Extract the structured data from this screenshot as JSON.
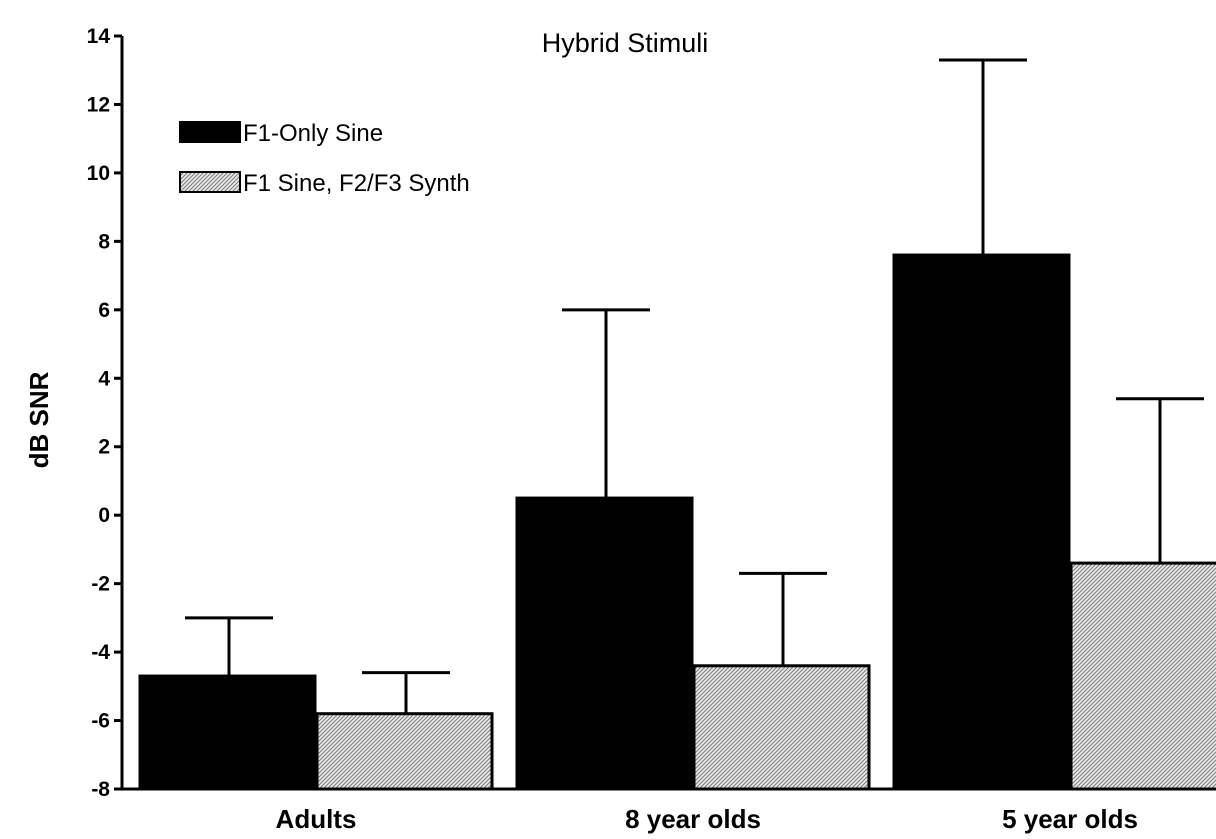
{
  "chart_data": {
    "type": "bar",
    "title": "Hybrid Stimuli",
    "xlabel": "",
    "ylabel": "dB SNR",
    "ylim": [
      -8,
      14
    ],
    "yticks": [
      "-8",
      "-6",
      "-4",
      "-2",
      "0",
      "2",
      "4",
      "6",
      "8",
      "10",
      "12",
      "14"
    ],
    "categories": [
      "Adults",
      "8 year olds",
      "5 year olds"
    ],
    "series": [
      {
        "name": "F1-Only Sine",
        "values": [
          -4.7,
          0.5,
          7.6
        ],
        "errors": [
          1.7,
          5.5,
          5.7
        ],
        "fill": "solid",
        "color": "#000000"
      },
      {
        "name": "F1 Sine, F2/F3 Synth",
        "values": [
          -5.8,
          -4.4,
          -1.4
        ],
        "errors": [
          1.2,
          2.7,
          4.8
        ],
        "fill": "hatched",
        "color": "#ffffff"
      }
    ],
    "grid": false,
    "legend_position": "top-left"
  }
}
